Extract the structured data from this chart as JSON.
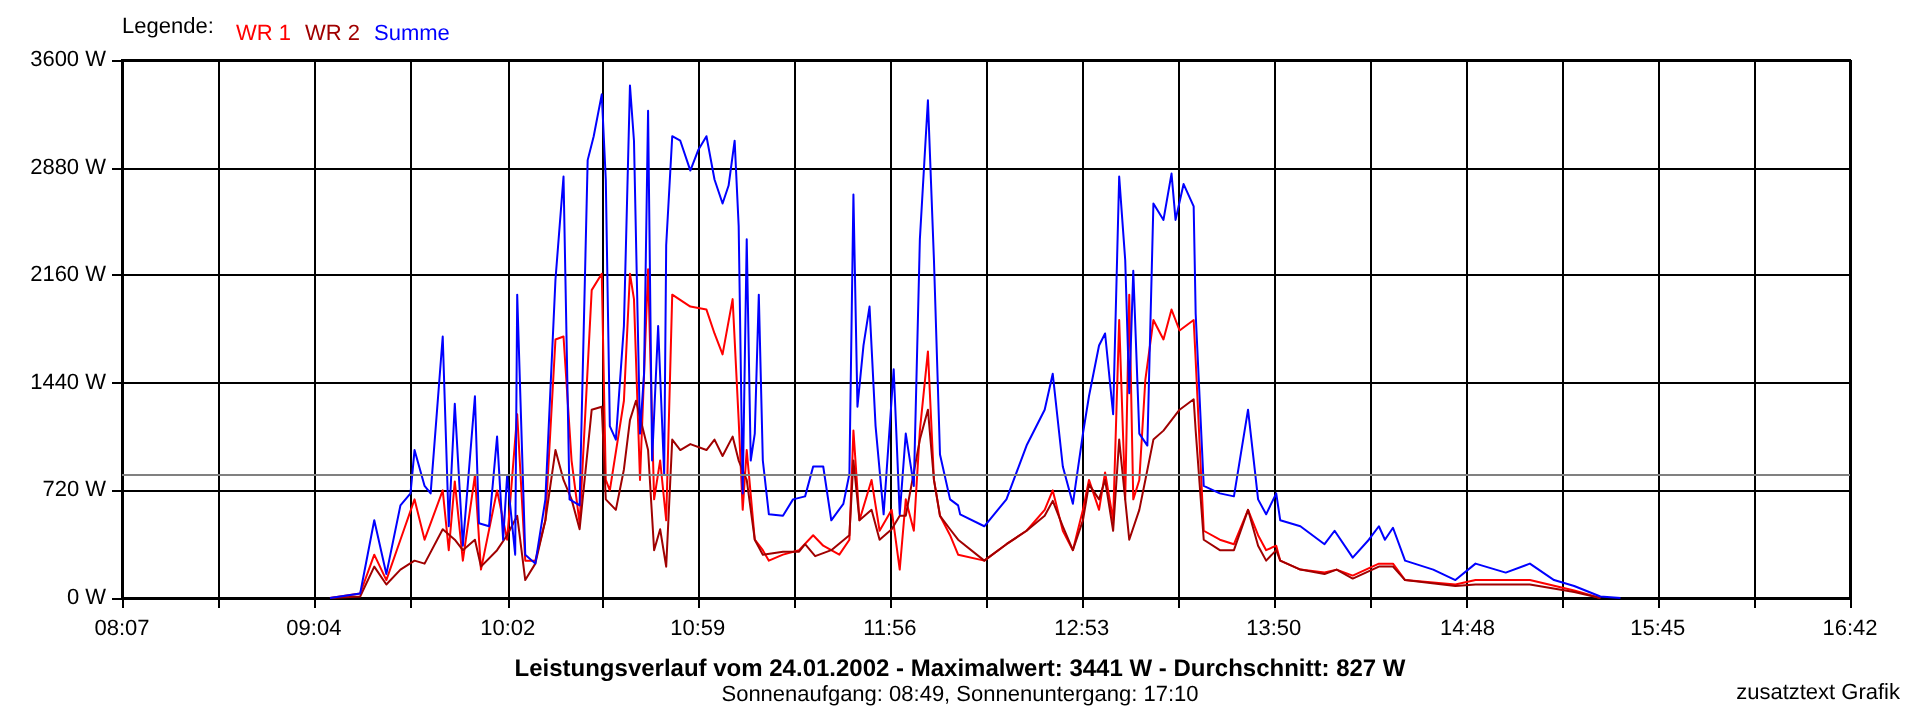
{
  "chart_data": {
    "type": "line",
    "title": "Leistungsverlauf vom 24.01.2002 - Maximalwert: 3441 W - Durchschnitt: 827 W",
    "subtitle": "Sonnenaufgang: 08:49, Sonnenuntergang: 17:10",
    "legend_title": "Legende:",
    "annotations": [
      "zusatztext Grafik"
    ],
    "xlim": [
      8.117,
      16.7
    ],
    "xticks": [
      {
        "value": 8.117,
        "label": "08:07"
      },
      {
        "value": 8.593,
        "label": null
      },
      {
        "value": 9.07,
        "label": "09:04"
      },
      {
        "value": 9.547,
        "label": null
      },
      {
        "value": 10.033,
        "label": "10:02"
      },
      {
        "value": 10.5,
        "label": null
      },
      {
        "value": 10.977,
        "label": "10:59"
      },
      {
        "value": 11.454,
        "label": null
      },
      {
        "value": 11.931,
        "label": "11:56"
      },
      {
        "value": 12.407,
        "label": null
      },
      {
        "value": 12.884,
        "label": "12:53"
      },
      {
        "value": 13.361,
        "label": null
      },
      {
        "value": 13.838,
        "label": "13:50"
      },
      {
        "value": 14.315,
        "label": null
      },
      {
        "value": 14.8,
        "label": "14:48"
      },
      {
        "value": 15.268,
        "label": null
      },
      {
        "value": 15.745,
        "label": "15:45"
      },
      {
        "value": 16.222,
        "label": null
      },
      {
        "value": 16.7,
        "label": "16:42"
      }
    ],
    "ylim": [
      0,
      3600
    ],
    "yticks": [
      {
        "value": 0,
        "label": "0 W"
      },
      {
        "value": 720,
        "label": "720 W"
      },
      {
        "value": 1440,
        "label": "1440 W"
      },
      {
        "value": 2160,
        "label": "2160 W"
      },
      {
        "value": 2880,
        "label": "2880 W"
      },
      {
        "value": 3600,
        "label": "3600 W"
      }
    ],
    "grid": true,
    "legend": "top left",
    "marker": "none",
    "line_style": "solid",
    "ref_lines": [
      {
        "axis": "y",
        "value": 827,
        "color": "#808080"
      }
    ],
    "series": [
      {
        "name": "WR 1",
        "color": "#ff0000",
        "x": [
          9.15,
          9.3,
          9.37,
          9.43,
          9.5,
          9.57,
          9.62,
          9.71,
          9.74,
          9.77,
          9.81,
          9.87,
          9.9,
          9.98,
          10.03,
          10.08,
          10.12,
          10.17,
          10.22,
          10.27,
          10.31,
          10.35,
          10.39,
          10.45,
          10.5,
          10.52,
          10.54,
          10.61,
          10.64,
          10.66,
          10.69,
          10.73,
          10.76,
          10.79,
          10.82,
          10.85,
          10.94,
          11.02,
          11.06,
          11.1,
          11.15,
          11.18,
          11.2,
          11.22,
          11.26,
          11.3,
          11.33,
          11.4,
          11.48,
          11.55,
          11.6,
          11.68,
          11.73,
          11.75,
          11.78,
          11.84,
          11.88,
          11.94,
          11.98,
          12.01,
          12.05,
          12.08,
          12.12,
          12.15,
          12.18,
          12.23,
          12.27,
          12.4,
          12.51,
          12.61,
          12.7,
          12.74,
          12.79,
          12.84,
          12.89,
          12.92,
          12.97,
          13.0,
          13.04,
          13.07,
          13.1,
          13.12,
          13.14,
          13.17,
          13.2,
          13.24,
          13.29,
          13.33,
          13.37,
          13.44,
          13.45,
          13.49,
          13.57,
          13.64,
          13.71,
          13.76,
          13.8,
          13.85,
          13.87,
          13.97,
          14.09,
          14.15,
          14.23,
          14.36,
          14.43,
          14.49,
          14.74,
          14.84,
          15.11,
          15.33,
          15.46
        ],
        "values": [
          0,
          30,
          290,
          120,
          390,
          660,
          390,
          720,
          320,
          780,
          250,
          820,
          190,
          720,
          390,
          1230,
          250,
          250,
          520,
          1730,
          1750,
          920,
          500,
          2060,
          2170,
          790,
          720,
          1320,
          2170,
          2000,
          790,
          2200,
          660,
          920,
          520,
          2030,
          1950,
          1930,
          1770,
          1630,
          2000,
          1190,
          590,
          990,
          390,
          320,
          250,
          290,
          320,
          420,
          350,
          290,
          390,
          1120,
          520,
          790,
          450,
          590,
          190,
          660,
          450,
          1120,
          1650,
          790,
          550,
          420,
          290,
          250,
          360,
          450,
          590,
          720,
          450,
          320,
          590,
          790,
          590,
          840,
          520,
          1860,
          660,
          2030,
          660,
          790,
          1460,
          1860,
          1730,
          1930,
          1790,
          1860,
          1590,
          450,
          390,
          360,
          590,
          420,
          320,
          350,
          250,
          190,
          170,
          190,
          150,
          230,
          230,
          120,
          90,
          120,
          120,
          50,
          0
        ]
      },
      {
        "name": "WR 2",
        "color": "#a00000",
        "x": [
          9.15,
          9.3,
          9.37,
          9.43,
          9.5,
          9.57,
          9.62,
          9.71,
          9.77,
          9.81,
          9.87,
          9.9,
          9.98,
          10.03,
          10.08,
          10.12,
          10.17,
          10.22,
          10.27,
          10.31,
          10.35,
          10.39,
          10.45,
          10.5,
          10.52,
          10.57,
          10.61,
          10.64,
          10.67,
          10.73,
          10.76,
          10.79,
          10.82,
          10.85,
          10.89,
          10.94,
          11.02,
          11.06,
          11.1,
          11.15,
          11.18,
          11.22,
          11.26,
          11.3,
          11.4,
          11.48,
          11.51,
          11.56,
          11.64,
          11.73,
          11.75,
          11.78,
          11.84,
          11.88,
          11.94,
          11.98,
          12.01,
          12.08,
          12.12,
          12.15,
          12.18,
          12.23,
          12.27,
          12.4,
          12.51,
          12.61,
          12.7,
          12.74,
          12.79,
          12.84,
          12.89,
          12.92,
          12.97,
          13.0,
          13.04,
          13.07,
          13.12,
          13.17,
          13.2,
          13.24,
          13.29,
          13.37,
          13.44,
          13.45,
          13.49,
          13.57,
          13.64,
          13.71,
          13.76,
          13.8,
          13.85,
          13.87,
          13.97,
          14.09,
          14.15,
          14.23,
          14.36,
          14.43,
          14.49,
          14.74,
          14.84,
          15.11,
          15.33,
          15.46
        ],
        "values": [
          0,
          10,
          210,
          90,
          190,
          250,
          230,
          460,
          390,
          320,
          390,
          210,
          320,
          420,
          550,
          120,
          230,
          520,
          990,
          790,
          660,
          460,
          1260,
          1280,
          660,
          590,
          860,
          1190,
          1320,
          990,
          320,
          460,
          210,
          1060,
          990,
          1030,
          990,
          1060,
          950,
          1080,
          920,
          790,
          390,
          290,
          310,
          310,
          360,
          280,
          320,
          420,
          920,
          520,
          590,
          390,
          460,
          550,
          550,
          1060,
          1260,
          790,
          550,
          460,
          390,
          250,
          360,
          450,
          550,
          650,
          480,
          320,
          520,
          760,
          660,
          790,
          450,
          1060,
          390,
          590,
          790,
          1060,
          1120,
          1260,
          1330,
          1120,
          390,
          320,
          320,
          590,
          350,
          250,
          320,
          250,
          190,
          160,
          190,
          130,
          210,
          210,
          120,
          80,
          90,
          90,
          40,
          0
        ]
      },
      {
        "name": "Summe",
        "color": "#0000ff",
        "x": [
          9.15,
          9.3,
          9.37,
          9.43,
          9.5,
          9.55,
          9.57,
          9.62,
          9.65,
          9.71,
          9.74,
          9.77,
          9.81,
          9.87,
          9.89,
          9.94,
          9.98,
          10.01,
          10.03,
          10.07,
          10.08,
          10.12,
          10.17,
          10.22,
          10.27,
          10.31,
          10.34,
          10.39,
          10.43,
          10.46,
          10.5,
          10.52,
          10.54,
          10.57,
          10.61,
          10.64,
          10.66,
          10.69,
          10.71,
          10.73,
          10.75,
          10.78,
          10.81,
          10.82,
          10.85,
          10.89,
          10.94,
          10.98,
          11.02,
          11.06,
          11.1,
          11.13,
          11.16,
          11.18,
          11.2,
          11.22,
          11.24,
          11.26,
          11.28,
          11.3,
          11.33,
          11.4,
          11.45,
          11.51,
          11.55,
          11.6,
          11.64,
          11.7,
          11.73,
          11.75,
          11.77,
          11.8,
          11.83,
          11.86,
          11.9,
          11.95,
          11.98,
          12.01,
          12.05,
          12.08,
          12.11,
          12.12,
          12.15,
          12.18,
          12.23,
          12.27,
          12.28,
          12.4,
          12.51,
          12.61,
          12.7,
          12.74,
          12.79,
          12.84,
          12.89,
          12.92,
          12.97,
          13.0,
          13.04,
          13.07,
          13.1,
          13.12,
          13.14,
          13.17,
          13.21,
          13.24,
          13.29,
          13.33,
          13.35,
          13.39,
          13.44,
          13.45,
          13.49,
          13.57,
          13.64,
          13.71,
          13.76,
          13.8,
          13.85,
          13.87,
          13.97,
          14.09,
          14.14,
          14.23,
          14.31,
          14.36,
          14.39,
          14.43,
          14.49,
          14.63,
          14.74,
          14.84,
          14.99,
          15.11,
          15.23,
          15.33,
          15.46,
          15.56
        ],
        "values": [
          0,
          30,
          520,
          160,
          620,
          700,
          990,
          750,
          700,
          1750,
          480,
          1300,
          350,
          1350,
          500,
          480,
          1080,
          390,
          820,
          290,
          2030,
          290,
          230,
          660,
          2130,
          2820,
          660,
          620,
          2930,
          3090,
          3370,
          2800,
          1150,
          1060,
          1820,
          3430,
          3060,
          1100,
          1500,
          3260,
          920,
          1820,
          830,
          2360,
          3090,
          3060,
          2860,
          3000,
          3090,
          2800,
          2640,
          2760,
          3060,
          2490,
          700,
          2400,
          920,
          1100,
          2030,
          920,
          560,
          550,
          660,
          680,
          880,
          880,
          520,
          630,
          830,
          2700,
          1280,
          1690,
          1950,
          1150,
          560,
          1530,
          560,
          1100,
          750,
          2400,
          3100,
          3330,
          2260,
          960,
          660,
          620,
          560,
          480,
          660,
          1020,
          1260,
          1500,
          880,
          630,
          1100,
          1350,
          1690,
          1770,
          1230,
          2820,
          2260,
          1370,
          2190,
          1100,
          1020,
          2640,
          2530,
          2840,
          2530,
          2770,
          2620,
          1900,
          750,
          700,
          680,
          1260,
          660,
          560,
          700,
          520,
          480,
          360,
          450,
          270,
          390,
          480,
          390,
          470,
          250,
          190,
          120,
          230,
          170,
          230,
          120,
          80,
          10,
          0
        ]
      }
    ]
  }
}
